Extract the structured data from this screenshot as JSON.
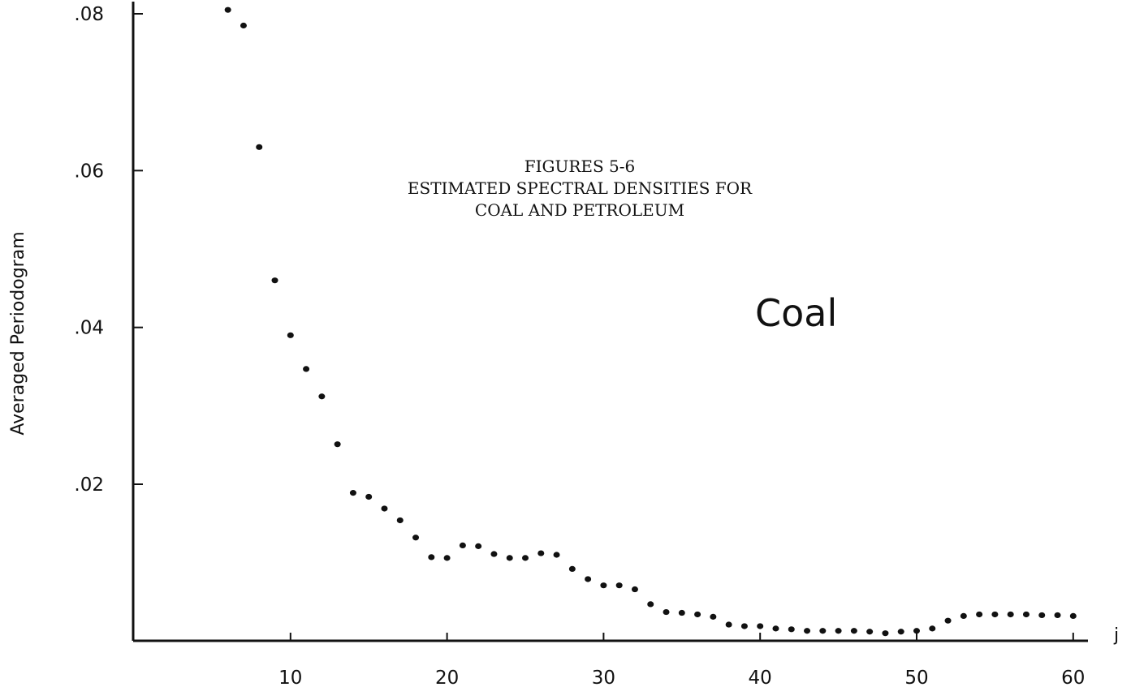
{
  "chart_data": {
    "type": "scatter",
    "title_lines": [
      "FIGURES 5-6",
      "ESTIMATED SPECTRAL DENSITIES FOR",
      "COAL AND PETROLEUM"
    ],
    "series_label": "Coal",
    "xlabel": "j",
    "ylabel": "Averaged Periodogram",
    "xlim": [
      0,
      60
    ],
    "ylim": [
      0,
      0.08
    ],
    "x_ticks": [
      10,
      20,
      30,
      40,
      50,
      60
    ],
    "x_tick_labels": [
      "10",
      "20",
      "30",
      "40",
      "50",
      "60"
    ],
    "y_ticks": [
      0.02,
      0.04,
      0.06,
      0.08
    ],
    "y_tick_labels": [
      ".02",
      ".04",
      ".06",
      ".08"
    ],
    "grid": false,
    "series": [
      {
        "x": [
          6,
          7,
          8,
          9,
          10,
          11,
          12,
          13,
          14,
          15,
          16,
          17,
          18,
          19,
          20,
          21,
          22,
          23,
          24,
          25,
          26,
          27,
          28,
          29,
          30,
          31,
          32,
          33,
          34,
          35,
          36,
          37,
          38,
          39,
          40,
          41,
          42,
          43,
          44,
          45,
          46,
          47,
          48,
          49,
          50,
          51,
          52,
          53,
          54,
          55,
          56,
          57,
          58,
          59,
          60
        ],
        "y": [
          0.0805,
          0.0785,
          0.063,
          0.046,
          0.039,
          0.0347,
          0.0312,
          0.0251,
          0.0189,
          0.0184,
          0.0169,
          0.0154,
          0.0132,
          0.0107,
          0.0106,
          0.0122,
          0.0121,
          0.0111,
          0.0106,
          0.0106,
          0.0112,
          0.011,
          0.0092,
          0.0079,
          0.0071,
          0.0071,
          0.0066,
          0.0047,
          0.0037,
          0.0036,
          0.0034,
          0.0031,
          0.0021,
          0.0019,
          0.0019,
          0.0016,
          0.0015,
          0.0013,
          0.0013,
          0.0013,
          0.0013,
          0.0012,
          0.001,
          0.0012,
          0.0013,
          0.0016,
          0.0026,
          0.0032,
          0.0034,
          0.0034,
          0.0034,
          0.0034,
          0.0033,
          0.0033,
          0.0032
        ]
      }
    ]
  }
}
